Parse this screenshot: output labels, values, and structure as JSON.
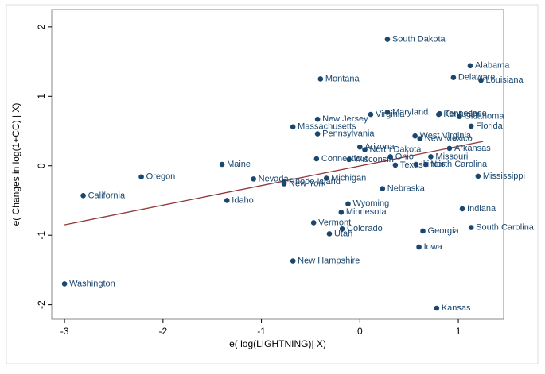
{
  "chart_data": {
    "type": "scatter",
    "xlabel": "e( log(LIGHTNING)| X)",
    "ylabel": "e( Changes in log(1+CC) | X)",
    "labels": [
      "South Dakota",
      "Alabama",
      "Delaware",
      "Louisiana",
      "Montana",
      "Maryland",
      "Virginia",
      "Tennessee",
      "Kentucky",
      "Oklahoma",
      "New Jersey",
      "Massachusetts",
      "Florida",
      "Pennsylvania",
      "West Virginia",
      "New Mexico",
      "Arizona",
      "North Dakota",
      "Arkansas",
      "Ohio",
      "Missouri",
      "Connecticut",
      "Wisconsin",
      "Illinois",
      "North Carolina",
      "Texas",
      "Maine",
      "Oregon",
      "Mississippi",
      "Nevada",
      "Rhode Island",
      "New York",
      "Michigan",
      "Nebraska",
      "California",
      "Idaho",
      "Wyoming",
      "Minnesota",
      "Indiana",
      "Vermont",
      "Colorado",
      "Utah",
      "Georgia",
      "South Carolina",
      "Iowa",
      "New Hampshire",
      "Washington",
      "Kansas"
    ],
    "x": [
      0.28,
      1.12,
      0.95,
      1.23,
      -0.4,
      0.28,
      0.11,
      0.81,
      0.8,
      1.01,
      -0.43,
      -0.68,
      1.13,
      -0.43,
      0.56,
      0.61,
      0.0,
      0.05,
      0.91,
      0.31,
      0.72,
      -0.44,
      -0.11,
      0.57,
      0.67,
      0.36,
      -1.4,
      -2.22,
      1.2,
      -1.08,
      -0.77,
      -0.77,
      -0.34,
      0.23,
      -2.81,
      -1.35,
      -0.12,
      -0.19,
      1.04,
      -0.47,
      -0.18,
      -0.31,
      0.64,
      1.13,
      0.6,
      -0.68,
      -3.0,
      0.78
    ],
    "y": [
      1.82,
      1.44,
      1.27,
      1.23,
      1.25,
      0.77,
      0.74,
      0.75,
      0.74,
      0.71,
      0.67,
      0.56,
      0.57,
      0.46,
      0.43,
      0.39,
      0.27,
      0.23,
      0.25,
      0.13,
      0.13,
      0.1,
      0.09,
      0.02,
      0.02,
      0.01,
      0.02,
      -0.16,
      -0.15,
      -0.19,
      -0.23,
      -0.26,
      -0.18,
      -0.33,
      -0.43,
      -0.5,
      -0.55,
      -0.67,
      -0.62,
      -0.82,
      -0.91,
      -0.98,
      -0.94,
      -0.89,
      -1.17,
      -1.37,
      -1.7,
      -2.05
    ],
    "color": "#1a476f",
    "fit": {
      "x": [
        -3.0,
        1.25
      ],
      "y": [
        -0.85,
        0.35
      ],
      "color": "#90353b"
    },
    "xlim": [
      -3.13,
      1.46
    ],
    "ylim": [
      -2.21,
      2.25
    ],
    "xticks": [
      -3,
      -2,
      -1,
      0,
      1
    ],
    "yticks": [
      -2,
      -1,
      0,
      1,
      2
    ]
  }
}
